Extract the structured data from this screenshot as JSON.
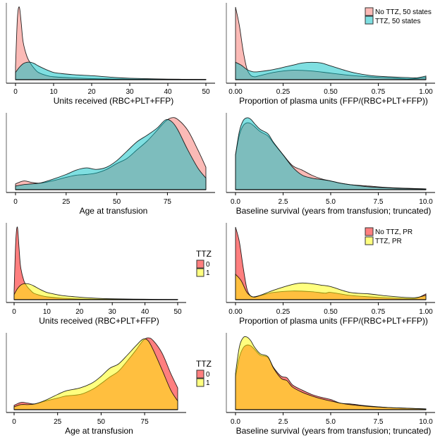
{
  "colors": {
    "no_ttz_50": "#f8766d",
    "ttz_50": "#00bfc4",
    "no_ttz_pr": "#ff0000",
    "ttz_pr": "#ffff00",
    "outline": "#000000",
    "axis": "#000000",
    "yaxis": "#808080"
  },
  "legends": {
    "states": {
      "items": [
        {
          "label": "No TTZ, 50 states",
          "color_key": "no_ttz_50"
        },
        {
          "label": "TTZ, 50 states",
          "color_key": "ttz_50"
        }
      ]
    },
    "pr": {
      "items": [
        {
          "label": "No TTZ, PR",
          "color_key": "no_ttz_pr"
        },
        {
          "label": "TTZ, PR",
          "color_key": "ttz_pr"
        }
      ]
    },
    "ttz_row3": {
      "title": "TTZ",
      "items": [
        {
          "label": "0",
          "color_key": "no_ttz_pr"
        },
        {
          "label": "1",
          "color_key": "ttz_pr"
        }
      ]
    },
    "ttz_row4": {
      "title": "TTZ",
      "items": [
        {
          "label": "0",
          "color_key": "no_ttz_pr"
        },
        {
          "label": "1",
          "color_key": "ttz_pr"
        }
      ]
    }
  },
  "chart_data": [
    {
      "id": "units-50states",
      "type": "area",
      "xlabel": "Units received (RBC+PLT+FFP)",
      "ylabel": "",
      "xlim": [
        0,
        50
      ],
      "xticks": [
        0,
        10,
        20,
        30,
        40,
        50
      ],
      "xtick_labels": [
        "0",
        "10",
        "20",
        "30",
        "40",
        "50"
      ],
      "ylim": [
        0,
        1
      ],
      "series": [
        {
          "name": "No TTZ, 50 states",
          "color_key": "no_ttz_50",
          "alpha": 0.5,
          "x": [
            0,
            0.5,
            1,
            1.5,
            2,
            3,
            4,
            5,
            6,
            8,
            10,
            15,
            20,
            25,
            30,
            40,
            50
          ],
          "y": [
            0.18,
            0.85,
            1.0,
            0.78,
            0.52,
            0.32,
            0.22,
            0.15,
            0.1,
            0.06,
            0.04,
            0.025,
            0.015,
            0.01,
            0.006,
            0.003,
            0.002
          ]
        },
        {
          "name": "TTZ, 50 states",
          "color_key": "ttz_50",
          "alpha": 0.5,
          "x": [
            0,
            1,
            2,
            3,
            4,
            5,
            6,
            8,
            10,
            12,
            15,
            20,
            25,
            30,
            40,
            50
          ],
          "y": [
            0.1,
            0.17,
            0.22,
            0.24,
            0.24,
            0.22,
            0.19,
            0.14,
            0.1,
            0.085,
            0.07,
            0.055,
            0.035,
            0.02,
            0.008,
            0.004
          ]
        }
      ]
    },
    {
      "id": "plasma-50states",
      "type": "area",
      "xlabel": "Proportion of plasma units (FFP/(RBC+PLT+FFP))",
      "ylabel": "",
      "xlim": [
        0,
        1
      ],
      "xticks": [
        0,
        0.25,
        0.5,
        0.75,
        1.0
      ],
      "xtick_labels": [
        "0.00",
        "0.25",
        "0.50",
        "0.75",
        "1.00"
      ],
      "ylim": [
        0,
        1
      ],
      "legend": "top-right",
      "series": [
        {
          "name": "No TTZ, 50 states",
          "color_key": "no_ttz_50",
          "alpha": 0.5,
          "x": [
            0,
            0.02,
            0.04,
            0.06,
            0.08,
            0.1,
            0.12,
            0.2,
            0.3,
            0.4,
            0.5,
            0.6,
            0.7,
            0.8,
            0.9,
            0.95,
            1.0
          ],
          "y": [
            1.0,
            0.75,
            0.4,
            0.15,
            0.06,
            0.04,
            0.05,
            0.1,
            0.13,
            0.12,
            0.09,
            0.06,
            0.04,
            0.025,
            0.01,
            0.015,
            0.03
          ]
        },
        {
          "name": "TTZ, 50 states",
          "color_key": "ttz_50",
          "alpha": 0.5,
          "x": [
            0,
            0.03,
            0.06,
            0.09,
            0.12,
            0.2,
            0.3,
            0.35,
            0.4,
            0.45,
            0.5,
            0.6,
            0.7,
            0.8,
            0.9,
            0.95,
            1.0
          ],
          "y": [
            0.24,
            0.2,
            0.14,
            0.11,
            0.11,
            0.14,
            0.2,
            0.23,
            0.24,
            0.23,
            0.19,
            0.11,
            0.06,
            0.04,
            0.03,
            0.025,
            0.05
          ]
        }
      ]
    },
    {
      "id": "age-50states",
      "type": "area",
      "xlabel": "Age at transfusion",
      "ylabel": "",
      "xlim": [
        0,
        94
      ],
      "xticks": [
        0,
        25,
        50,
        75
      ],
      "xtick_labels": [
        "0",
        "25",
        "50",
        "75"
      ],
      "ylim": [
        0,
        1
      ],
      "series": [
        {
          "name": "No TTZ, 50 states",
          "color_key": "no_ttz_50",
          "alpha": 0.5,
          "x": [
            0,
            4,
            8,
            12,
            18,
            25,
            30,
            35,
            40,
            45,
            50,
            55,
            60,
            65,
            70,
            74,
            77,
            80,
            85,
            90,
            94
          ],
          "y": [
            0.08,
            0.12,
            0.1,
            0.09,
            0.12,
            0.17,
            0.2,
            0.21,
            0.23,
            0.28,
            0.36,
            0.43,
            0.55,
            0.67,
            0.82,
            0.94,
            0.99,
            0.97,
            0.82,
            0.55,
            0.31
          ]
        },
        {
          "name": "TTZ, 50 states",
          "color_key": "ttz_50",
          "alpha": 0.5,
          "x": [
            0,
            4,
            8,
            12,
            18,
            25,
            30,
            35,
            40,
            45,
            50,
            55,
            60,
            65,
            70,
            74,
            77,
            80,
            85,
            90,
            94
          ],
          "y": [
            0.05,
            0.07,
            0.08,
            0.09,
            0.14,
            0.21,
            0.27,
            0.3,
            0.28,
            0.31,
            0.4,
            0.53,
            0.66,
            0.75,
            0.85,
            0.96,
            0.94,
            0.83,
            0.55,
            0.3,
            0.16
          ]
        }
      ]
    },
    {
      "id": "survival-50states",
      "type": "area",
      "xlabel": "Baseline survival (years from transfusion; truncated)",
      "ylabel": "",
      "xlim": [
        0,
        10
      ],
      "xticks": [
        0,
        2.5,
        5.0,
        7.5,
        10.0
      ],
      "xtick_labels": [
        "0.0",
        "2.5",
        "5.0",
        "7.5",
        "10.0"
      ],
      "ylim": [
        0,
        1
      ],
      "series": [
        {
          "name": "No TTZ, 50 states",
          "color_key": "no_ttz_50",
          "alpha": 0.5,
          "x": [
            0,
            0.2,
            0.4,
            0.6,
            0.8,
            1.0,
            1.3,
            1.7,
            2.0,
            2.5,
            3.0,
            3.5,
            4.0,
            4.5,
            5.0,
            5.5,
            6.0,
            7.0,
            8.0,
            9.0,
            10.0
          ],
          "y": [
            0.48,
            0.75,
            0.88,
            0.92,
            0.91,
            0.87,
            0.8,
            0.74,
            0.64,
            0.48,
            0.33,
            0.27,
            0.2,
            0.15,
            0.12,
            0.09,
            0.07,
            0.05,
            0.03,
            0.02,
            0.01
          ]
        },
        {
          "name": "TTZ, 50 states",
          "color_key": "ttz_50",
          "alpha": 0.5,
          "x": [
            0,
            0.2,
            0.4,
            0.6,
            0.8,
            1.0,
            1.3,
            1.7,
            2.0,
            2.5,
            3.0,
            3.5,
            4.0,
            4.5,
            5.0,
            5.5,
            6.0,
            7.0,
            8.0,
            9.0,
            10.0
          ],
          "y": [
            0.48,
            0.8,
            0.95,
            0.99,
            0.97,
            0.91,
            0.83,
            0.77,
            0.65,
            0.48,
            0.31,
            0.2,
            0.16,
            0.14,
            0.12,
            0.09,
            0.07,
            0.04,
            0.025,
            0.015,
            0.01
          ]
        }
      ]
    },
    {
      "id": "units-pr",
      "type": "area",
      "xlabel": "Units received (RBC+PLT+FFP)",
      "ylabel": "",
      "xlim": [
        0,
        50
      ],
      "xticks": [
        0,
        10,
        20,
        30,
        40,
        50
      ],
      "xtick_labels": [
        "0",
        "10",
        "20",
        "30",
        "40",
        "50"
      ],
      "ylim": [
        0,
        1
      ],
      "legend": "right",
      "series": [
        {
          "name": "0",
          "color_key": "no_ttz_pr",
          "alpha": 0.5,
          "x": [
            0,
            0.5,
            1,
            1.5,
            2,
            3,
            4,
            5,
            6,
            8,
            10,
            15,
            20,
            25,
            30,
            40,
            50
          ],
          "y": [
            0.12,
            0.8,
            1.0,
            0.72,
            0.45,
            0.26,
            0.18,
            0.13,
            0.09,
            0.06,
            0.04,
            0.02,
            0.01,
            0.007,
            0.005,
            0.003,
            0.002
          ]
        },
        {
          "name": "1",
          "color_key": "ttz_pr",
          "alpha": 0.5,
          "x": [
            0,
            1,
            2,
            3,
            4,
            5,
            6,
            8,
            10,
            12,
            15,
            20,
            25,
            30,
            40,
            50
          ],
          "y": [
            0.07,
            0.15,
            0.2,
            0.22,
            0.22,
            0.21,
            0.19,
            0.14,
            0.1,
            0.08,
            0.055,
            0.035,
            0.02,
            0.012,
            0.006,
            0.003
          ]
        }
      ]
    },
    {
      "id": "plasma-pr",
      "type": "area",
      "xlabel": "Proportion of plasma units (FFP/(RBC+PLT+FFP))",
      "ylabel": "",
      "xlim": [
        0,
        1
      ],
      "xticks": [
        0,
        0.25,
        0.5,
        0.75,
        1.0
      ],
      "xtick_labels": [
        "0.00",
        "0.25",
        "0.50",
        "0.75",
        "1.00"
      ],
      "ylim": [
        0,
        1
      ],
      "legend": "top-right",
      "series": [
        {
          "name": "No TTZ, PR",
          "color_key": "no_ttz_pr",
          "alpha": 0.5,
          "x": [
            0,
            0.02,
            0.04,
            0.06,
            0.08,
            0.1,
            0.15,
            0.2,
            0.3,
            0.4,
            0.47,
            0.5,
            0.6,
            0.7,
            0.8,
            0.9,
            0.95,
            1.0
          ],
          "y": [
            1.0,
            0.8,
            0.45,
            0.15,
            0.05,
            0.04,
            0.07,
            0.1,
            0.12,
            0.11,
            0.09,
            0.1,
            0.06,
            0.04,
            0.025,
            0.015,
            0.02,
            0.08
          ]
        },
        {
          "name": "TTZ, PR",
          "color_key": "ttz_pr",
          "alpha": 0.5,
          "x": [
            0,
            0.03,
            0.06,
            0.09,
            0.12,
            0.2,
            0.3,
            0.35,
            0.4,
            0.45,
            0.5,
            0.6,
            0.7,
            0.8,
            0.9,
            0.95,
            1.0
          ],
          "y": [
            0.35,
            0.26,
            0.1,
            0.04,
            0.05,
            0.13,
            0.21,
            0.23,
            0.22,
            0.2,
            0.18,
            0.1,
            0.08,
            0.05,
            0.03,
            0.03,
            0.06
          ]
        }
      ]
    },
    {
      "id": "age-pr",
      "type": "area",
      "xlabel": "Age at transfusion",
      "ylabel": "",
      "xlim": [
        0,
        94
      ],
      "xticks": [
        0,
        25,
        50,
        75
      ],
      "xtick_labels": [
        "0",
        "25",
        "50",
        "75"
      ],
      "ylim": [
        0,
        1
      ],
      "legend": "right",
      "series": [
        {
          "name": "0",
          "color_key": "no_ttz_pr",
          "alpha": 0.5,
          "x": [
            0,
            4,
            8,
            12,
            18,
            25,
            30,
            38,
            45,
            50,
            55,
            60,
            65,
            70,
            74,
            77,
            80,
            85,
            90,
            94
          ],
          "y": [
            0.06,
            0.1,
            0.09,
            0.08,
            0.12,
            0.16,
            0.19,
            0.21,
            0.28,
            0.36,
            0.45,
            0.53,
            0.67,
            0.82,
            0.95,
            0.99,
            0.95,
            0.78,
            0.5,
            0.3
          ]
        },
        {
          "name": "1",
          "color_key": "ttz_pr",
          "alpha": 0.5,
          "x": [
            0,
            4,
            8,
            12,
            18,
            25,
            30,
            38,
            45,
            50,
            55,
            60,
            65,
            70,
            74,
            77,
            80,
            85,
            90,
            94
          ],
          "y": [
            0.04,
            0.07,
            0.07,
            0.08,
            0.13,
            0.21,
            0.26,
            0.3,
            0.37,
            0.46,
            0.57,
            0.63,
            0.75,
            0.88,
            0.97,
            0.95,
            0.82,
            0.55,
            0.27,
            0.12
          ]
        }
      ]
    },
    {
      "id": "survival-pr",
      "type": "area",
      "xlabel": "Baseline survival (years from transfusion; truncated)",
      "ylabel": "",
      "xlim": [
        0,
        10
      ],
      "xticks": [
        0,
        2.5,
        5.0,
        7.5,
        10.0
      ],
      "xtick_labels": [
        "0.0",
        "2.5",
        "5.0",
        "7.5",
        "10.0"
      ],
      "ylim": [
        0,
        1
      ],
      "series": [
        {
          "name": "0",
          "color_key": "no_ttz_pr",
          "alpha": 0.5,
          "x": [
            0,
            0.2,
            0.4,
            0.6,
            0.8,
            1.0,
            1.3,
            1.7,
            2.0,
            2.4,
            2.7,
            3.0,
            3.5,
            4.0,
            4.5,
            5.0,
            5.5,
            6.0,
            7.0,
            8.0,
            9.0,
            10.0
          ],
          "y": [
            0.45,
            0.72,
            0.85,
            0.89,
            0.88,
            0.83,
            0.75,
            0.72,
            0.58,
            0.46,
            0.44,
            0.34,
            0.27,
            0.21,
            0.17,
            0.14,
            0.09,
            0.08,
            0.05,
            0.03,
            0.02,
            0.01
          ]
        },
        {
          "name": "1",
          "color_key": "ttz_pr",
          "alpha": 0.5,
          "x": [
            0,
            0.2,
            0.4,
            0.6,
            0.8,
            1.0,
            1.3,
            1.7,
            2.0,
            2.4,
            2.7,
            3.0,
            3.5,
            4.0,
            4.5,
            5.0,
            5.5,
            6.0,
            7.0,
            8.0,
            9.0,
            10.0
          ],
          "y": [
            0.5,
            0.86,
            0.99,
            1.0,
            0.95,
            0.86,
            0.77,
            0.73,
            0.57,
            0.43,
            0.4,
            0.31,
            0.24,
            0.19,
            0.15,
            0.12,
            0.09,
            0.07,
            0.045,
            0.03,
            0.02,
            0.01
          ]
        }
      ]
    }
  ]
}
